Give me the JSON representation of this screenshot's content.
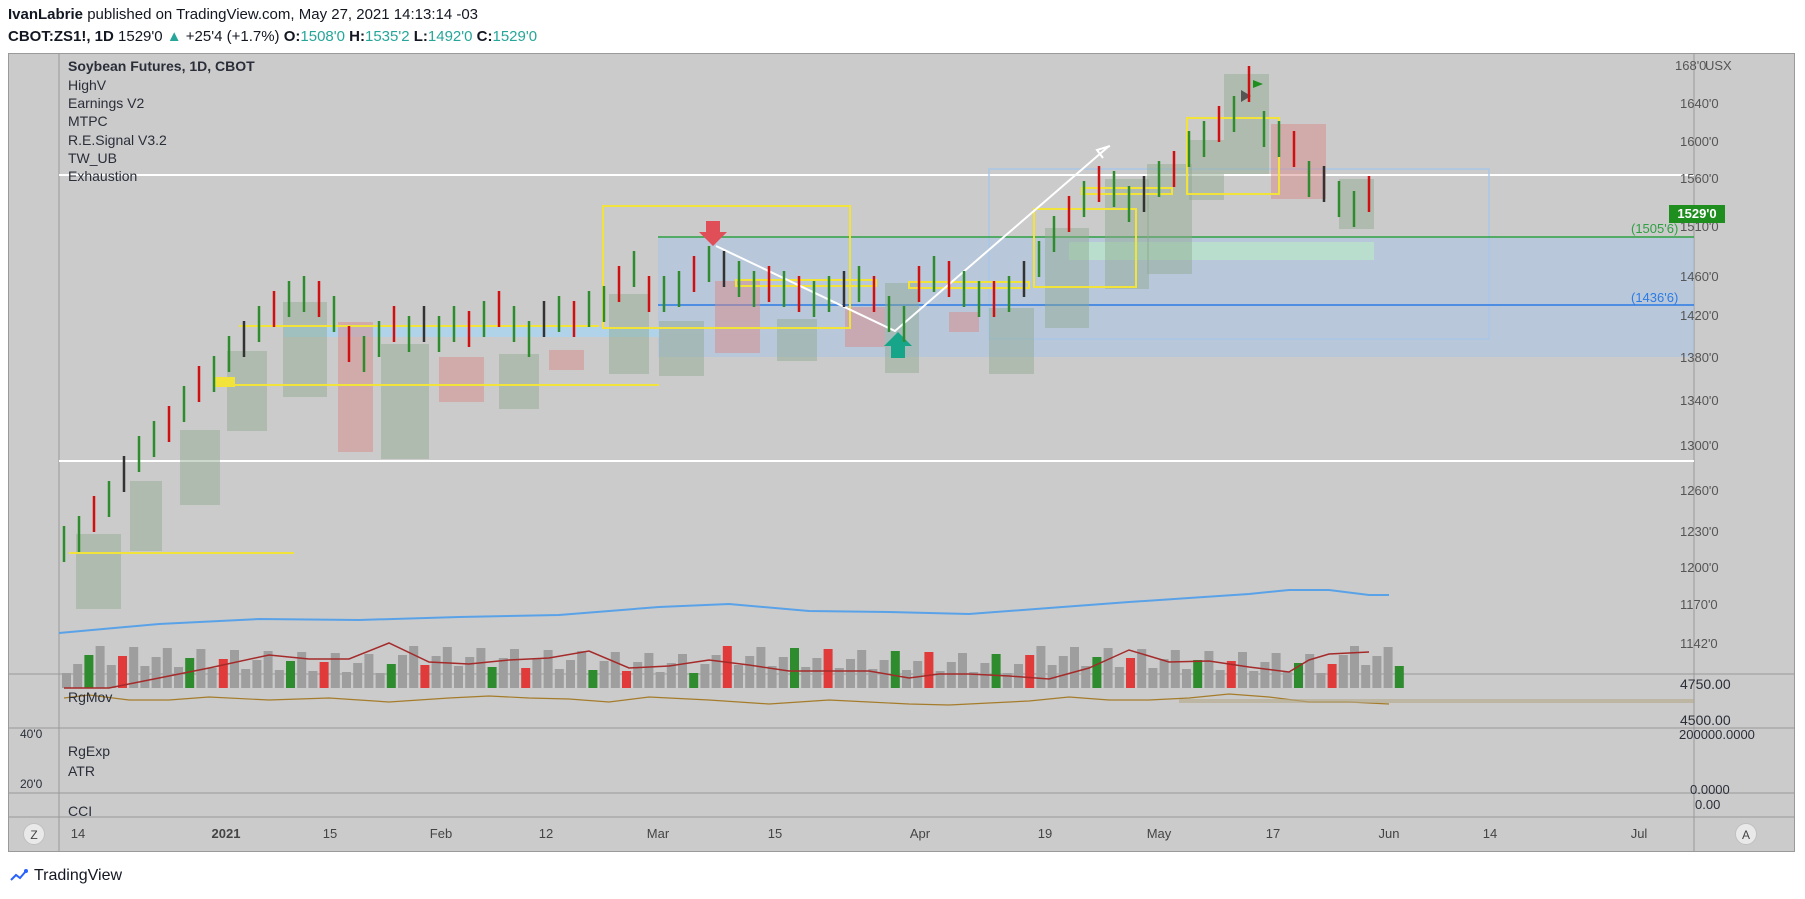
{
  "header": {
    "author": "IvanLabrie",
    "published_text": "published on TradingView.com, May 27, 2021 14:13:14 -03"
  },
  "quote": {
    "symbol": "CBOT:ZS1!, 1D",
    "last": "1529'0",
    "change": "+25'4 (+1.7%)",
    "open_label": "O:",
    "open": "1508'0",
    "high_label": "H:",
    "high": "1535'2",
    "low_label": "L:",
    "low": "1492'0",
    "close_label": "C:",
    "close": "1529'0"
  },
  "legend": [
    "Soybean Futures, 1D, CBOT",
    "HighV",
    "Earnings V2",
    "MTPC",
    "R.E.Signal V3.2",
    "TW_UB",
    "Exhaustion"
  ],
  "price_axis": {
    "currency": "USX",
    "labels": [
      "168'0",
      "1640'0",
      "1600'0",
      "1560'0",
      "1510'0",
      "1460'0",
      "1420'0",
      "1380'0",
      "1340'0",
      "1300'0",
      "1260'0",
      "1230'0",
      "1200'0",
      "1170'0",
      "1142'0"
    ],
    "last_price_badge": "1529'0",
    "level_green": "(1505'6)",
    "level_blue": "(1436'6)"
  },
  "panes": {
    "rgmov_label": "RgMov",
    "rgmov_axis": [
      "4750.00",
      "4500.00"
    ],
    "rgexp_label": "RgExp",
    "atr_label": "ATR",
    "rgexp_axis_left": [
      "40'0",
      "20'0"
    ],
    "rgexp_axis_right": [
      "200000.0000",
      "0.0000"
    ],
    "cci_label": "CCI",
    "cci_axis": "0.00"
  },
  "time_axis": {
    "labels": [
      "14",
      "2021",
      "15",
      "Feb",
      "12",
      "Mar",
      "15",
      "Apr",
      "19",
      "May",
      "17",
      "Jun",
      "14",
      "Jul"
    ]
  },
  "buttons": {
    "tz": "Z",
    "auto": "A"
  },
  "footer": {
    "brand": "TradingView"
  },
  "colors": {
    "up": "#2e8b2e",
    "down": "#d01010",
    "neutral": "#333333",
    "accent": "#26a69a",
    "badge": "#1e8e1e"
  }
}
